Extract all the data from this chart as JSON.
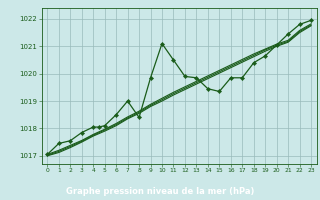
{
  "title": "Graphe pression niveau de la mer (hPa)",
  "bg_color": "#cce8e8",
  "plot_bg_color": "#cce8e8",
  "label_bg_color": "#2d6e2d",
  "label_text_color": "#ffffff",
  "line_color": "#1a5c1a",
  "grid_color": "#99bbbb",
  "xlim": [
    -0.5,
    23.5
  ],
  "ylim": [
    1016.7,
    1022.4
  ],
  "yticks": [
    1017,
    1018,
    1019,
    1020,
    1021,
    1022
  ],
  "xticks": [
    0,
    1,
    2,
    3,
    4,
    5,
    6,
    7,
    8,
    9,
    10,
    11,
    12,
    13,
    14,
    15,
    16,
    17,
    18,
    19,
    20,
    21,
    22,
    23
  ],
  "series1_x": [
    0,
    1,
    2,
    3,
    4,
    4.5,
    5,
    6,
    7,
    8,
    9,
    10,
    11,
    12,
    13,
    14,
    15,
    16,
    17,
    18,
    19,
    20,
    21,
    22,
    23
  ],
  "series1_y": [
    1017.05,
    1017.45,
    1017.55,
    1017.85,
    1018.05,
    1018.05,
    1018.1,
    1018.5,
    1019.0,
    1018.4,
    1019.85,
    1021.1,
    1020.5,
    1019.9,
    1019.85,
    1019.45,
    1019.35,
    1019.85,
    1019.85,
    1020.4,
    1020.65,
    1021.05,
    1021.45,
    1021.8,
    1021.95
  ],
  "series2_x": [
    0,
    1,
    2,
    3,
    4,
    5,
    6,
    7,
    8,
    9,
    10,
    11,
    12,
    13,
    14,
    15,
    16,
    17,
    18,
    19,
    20,
    21,
    22,
    23
  ],
  "series2_y": [
    1017.05,
    1017.2,
    1017.38,
    1017.56,
    1017.78,
    1017.97,
    1018.18,
    1018.42,
    1018.63,
    1018.88,
    1019.1,
    1019.32,
    1019.52,
    1019.72,
    1019.92,
    1020.12,
    1020.32,
    1020.52,
    1020.72,
    1020.9,
    1021.08,
    1021.22,
    1021.58,
    1021.82
  ],
  "series3_x": [
    0,
    1,
    2,
    3,
    4,
    5,
    6,
    7,
    8,
    9,
    10,
    11,
    12,
    13,
    14,
    15,
    16,
    17,
    18,
    19,
    20,
    21,
    22,
    23
  ],
  "series3_y": [
    1017.0,
    1017.12,
    1017.3,
    1017.5,
    1017.72,
    1017.9,
    1018.1,
    1018.35,
    1018.55,
    1018.8,
    1019.0,
    1019.22,
    1019.42,
    1019.62,
    1019.82,
    1020.02,
    1020.22,
    1020.42,
    1020.62,
    1020.82,
    1021.0,
    1021.15,
    1021.5,
    1021.75
  ],
  "series4_x": [
    0,
    1,
    2,
    3,
    4,
    5,
    6,
    7,
    8,
    9,
    10,
    11,
    12,
    13,
    14,
    15,
    16,
    17,
    18,
    19,
    20,
    21,
    22,
    23
  ],
  "series4_y": [
    1017.02,
    1017.16,
    1017.34,
    1017.53,
    1017.75,
    1017.94,
    1018.14,
    1018.38,
    1018.59,
    1018.84,
    1019.05,
    1019.27,
    1019.47,
    1019.67,
    1019.87,
    1020.07,
    1020.27,
    1020.47,
    1020.67,
    1020.87,
    1021.04,
    1021.18,
    1021.54,
    1021.78
  ]
}
